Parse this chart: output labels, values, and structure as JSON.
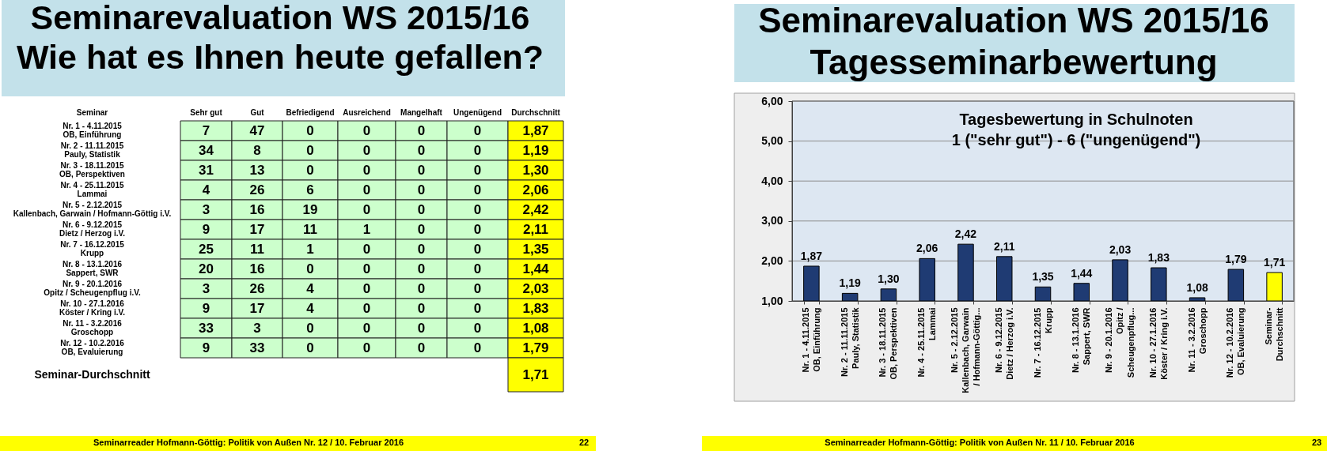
{
  "chart_data": [
    {
      "type": "heatmap",
      "title": "Seminarevaluation WS 2015/16",
      "subtitle": "Wie hat es Ihnen heute gefallen?",
      "ylabel": "Seminar",
      "categories": [
        "Sehr gut",
        "Gut",
        "Befriedigend",
        "Ausreichend",
        "Mangelhaft",
        "Ungenügend",
        "Durchschnitt"
      ],
      "y_categories": [
        "Nr. 1 - 4.11.2015\nOB, Einführung",
        "Nr. 2 - 11.11.2015\nPauly, Statistik",
        "Nr. 3 - 18.11.2015\nOB, Perspektiven",
        "Nr. 4 - 25.11.2015\nLammai",
        "Nr. 5 - 2.12.2015\nKallenbach, Garwain / Hofmann-Göttig i.V.",
        "Nr. 6 - 9.12.2015\nDietz / Herzog i.V.",
        "Nr. 7 - 16.12.2015\nKrupp",
        "Nr. 8 - 13.1.2016\nSappert, SWR",
        "Nr. 9 - 20.1.2016\nOpitz / Scheugenpflug i.V.",
        "Nr. 10 - 27.1.2016\nKöster / Kring i.V.",
        "Nr. 11 - 3.2.2016\nGroschopp",
        "Nr. 12 - 10.2.2016\nOB, Evaluierung",
        "Seminar-Durchschnitt"
      ],
      "cells": [
        [
          7,
          47,
          0,
          0,
          0,
          0,
          1.87
        ],
        [
          34,
          8,
          0,
          0,
          0,
          0,
          1.19
        ],
        [
          31,
          13,
          0,
          0,
          0,
          0,
          1.3
        ],
        [
          4,
          26,
          6,
          0,
          0,
          0,
          2.06
        ],
        [
          3,
          16,
          19,
          0,
          0,
          0,
          2.42
        ],
        [
          9,
          17,
          11,
          1,
          0,
          0,
          2.11
        ],
        [
          25,
          11,
          1,
          0,
          0,
          0,
          1.35
        ],
        [
          20,
          16,
          0,
          0,
          0,
          0,
          1.44
        ],
        [
          3,
          26,
          4,
          0,
          0,
          0,
          2.03
        ],
        [
          9,
          17,
          4,
          0,
          0,
          0,
          1.83
        ],
        [
          33,
          3,
          0,
          0,
          0,
          0,
          1.08
        ],
        [
          9,
          33,
          0,
          0,
          0,
          0,
          1.79
        ],
        [
          null,
          null,
          null,
          null,
          null,
          null,
          1.71
        ]
      ],
      "cell_labels": [
        [
          "7",
          "47",
          "0",
          "0",
          "0",
          "0",
          "1,87"
        ],
        [
          "34",
          "8",
          "0",
          "0",
          "0",
          "0",
          "1,19"
        ],
        [
          "31",
          "13",
          "0",
          "0",
          "0",
          "0",
          "1,30"
        ],
        [
          "4",
          "26",
          "6",
          "0",
          "0",
          "0",
          "2,06"
        ],
        [
          "3",
          "16",
          "19",
          "0",
          "0",
          "0",
          "2,42"
        ],
        [
          "9",
          "17",
          "11",
          "1",
          "0",
          "0",
          "2,11"
        ],
        [
          "25",
          "11",
          "1",
          "0",
          "0",
          "0",
          "1,35"
        ],
        [
          "20",
          "16",
          "0",
          "0",
          "0",
          "0",
          "1,44"
        ],
        [
          "3",
          "26",
          "4",
          "0",
          "0",
          "0",
          "2,03"
        ],
        [
          "9",
          "17",
          "4",
          "0",
          "0",
          "0",
          "1,83"
        ],
        [
          "33",
          "3",
          "0",
          "0",
          "0",
          "0",
          "1,08"
        ],
        [
          "9",
          "33",
          "0",
          "0",
          "0",
          "0",
          "1,79"
        ],
        [
          null,
          null,
          null,
          null,
          null,
          null,
          "1,71"
        ]
      ],
      "annotations": [
        "Seminarreader Hofmann-Göttig: Politik von Außen Nr. 12 / 10. Februar 2016",
        "22"
      ]
    },
    {
      "type": "bar",
      "title": "Seminarevaluation WS 2015/16",
      "subtitle": "Tagesseminarbewertung",
      "categories": [
        "Nr. 1 - 4.11.2015\nOB, Einführung",
        "Nr. 2 - 11.11.2015\nPauly, Statistik",
        "Nr. 3 - 18.11.2015\nOB, Perspektiven",
        "Nr. 4 - 25.11.2015\nLammai",
        "Nr. 5 - 2.12.2015\nKallenbach, Garwain\n/ Hofmann-Göttig...",
        "Nr. 6 - 9.12.2015\nDietz / Herzog i.V.",
        "Nr. 7 - 16.12.2015\nKrupp",
        "Nr. 8 - 13.1.2016\nSappert, SWR",
        "Nr. 9 - 20.1.2016\nOpitz /\nScheugenpflug...",
        "Nr. 10 - 27.1.2016\nKöster / Kring i.V.",
        "Nr. 11 - 3.2.2016\nGroschopp",
        "Nr. 12 - 10.2.2016\nOB, Evaluierung",
        "Seminar-\nDurchschnitt"
      ],
      "values": [
        1.87,
        1.19,
        1.3,
        2.06,
        2.42,
        2.11,
        1.35,
        1.44,
        2.03,
        1.83,
        1.08,
        1.79,
        1.71
      ],
      "colors": [
        "#1f3b73",
        "#1f3b73",
        "#1f3b73",
        "#1f3b73",
        "#1f3b73",
        "#1f3b73",
        "#1f3b73",
        "#1f3b73",
        "#1f3b73",
        "#1f3b73",
        "#1f3b73",
        "#1f3b73",
        "#ffff00"
      ],
      "value_labels": [
        "1,87",
        "1,19",
        "1,30",
        "2,06",
        "2,42",
        "2,11",
        "1,35",
        "1,44",
        "2,03",
        "1,83",
        "1,08",
        "1,79",
        "1,71"
      ],
      "ylim": [
        1,
        6
      ],
      "yticks": [
        {
          "value": 1,
          "label": "1,00"
        },
        {
          "value": 2,
          "label": "2,00"
        },
        {
          "value": 3,
          "label": "3,00"
        },
        {
          "value": 4,
          "label": "4,00"
        },
        {
          "value": 5,
          "label": "5,00"
        },
        {
          "value": 6,
          "label": "6,00"
        }
      ],
      "grid": "y",
      "annotations": [
        "Tagesbewertung in Schulnoten",
        "1 (\"sehr gut\") - 6 (\"ungenügend\")",
        "Seminarreader Hofmann-Göttig: Politik von Außen Nr. 11 / 10. Februar 2016",
        "23"
      ]
    }
  ]
}
